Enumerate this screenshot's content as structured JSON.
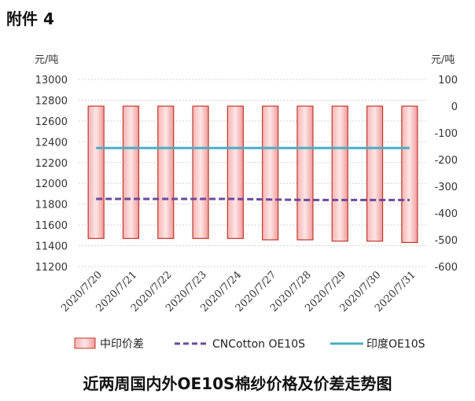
{
  "header": {
    "text": "附件 4"
  },
  "caption": {
    "text": "近两周国内外OE10S棉纱价格及价差走势图"
  },
  "chart_data": {
    "type": "bar+line",
    "categories": [
      "2020/7/20",
      "2020/7/21",
      "2020/7/22",
      "2020/7/23",
      "2020/7/24",
      "2020/7/27",
      "2020/7/28",
      "2020/7/29",
      "2020/7/30",
      "2020/7/31"
    ],
    "left_axis": {
      "unit": "元/吨",
      "ylim": [
        11200,
        13000
      ],
      "ticks": [
        11200,
        11400,
        11600,
        11800,
        12000,
        12200,
        12400,
        12600,
        12800,
        13000
      ]
    },
    "right_axis": {
      "unit": "元/吨",
      "ylim": [
        -600,
        100
      ],
      "ticks": [
        -600,
        -500,
        -400,
        -300,
        -200,
        -100,
        0,
        100
      ]
    },
    "series": [
      {
        "name": "中印价差",
        "kind": "bar",
        "axis": "right",
        "color": "#f08a8a",
        "values": [
          -495,
          -495,
          -495,
          -495,
          -495,
          -500,
          -500,
          -505,
          -505,
          -510
        ]
      },
      {
        "name": "CNCotton OE10S",
        "kind": "line",
        "axis": "left",
        "style": "dashed",
        "color": "#6b4a9c",
        "values": [
          11850,
          11850,
          11850,
          11850,
          11850,
          11845,
          11840,
          11840,
          11840,
          11840
        ]
      },
      {
        "name": "印度OE10S",
        "kind": "line",
        "axis": "left",
        "style": "solid",
        "color": "#4aaec6",
        "values": [
          12340,
          12340,
          12340,
          12340,
          12340,
          12340,
          12340,
          12340,
          12340,
          12340
        ]
      }
    ],
    "grid": true,
    "legend_position": "bottom"
  }
}
